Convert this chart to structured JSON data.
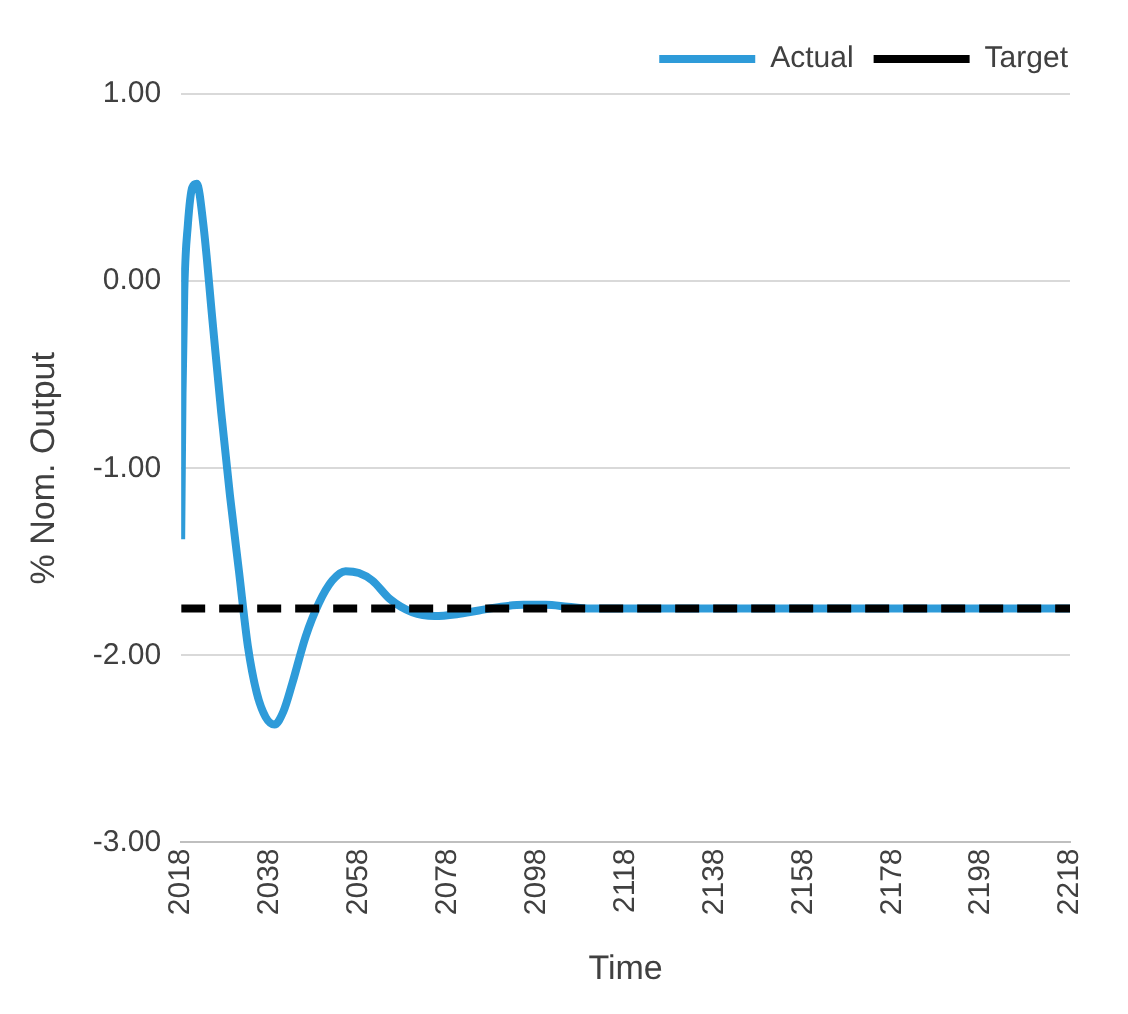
{
  "chart_data": {
    "type": "line",
    "xlabel": "Time",
    "ylabel": "% Nom. Output",
    "xlim": [
      2018,
      2218
    ],
    "xticks": [
      2018,
      2038,
      2058,
      2078,
      2098,
      2118,
      2138,
      2158,
      2178,
      2198,
      2218
    ],
    "ylim": [
      -3,
      1
    ],
    "yticks": [
      {
        "value": -3,
        "label": "-3.00"
      },
      {
        "value": -2,
        "label": "-2.00"
      },
      {
        "value": -1,
        "label": "-1.00"
      },
      {
        "value": 0,
        "label": "0.00"
      },
      {
        "value": 1,
        "label": "1.00"
      }
    ],
    "grid": "y",
    "legend": "top right",
    "marker": "none",
    "series": [
      {
        "name": "Actual",
        "color": "#2e9bd9",
        "line_style": "solid",
        "x": [
          2018,
          2018.3,
          2018.7,
          2019.5,
          2020.5,
          2021.5,
          2023,
          2025,
          2027,
          2029,
          2031,
          2033,
          2035,
          2037,
          2039,
          2041,
          2043,
          2046,
          2049,
          2052,
          2055,
          2058,
          2061,
          2065,
          2070,
          2075,
          2080,
          2085,
          2090,
          2095,
          2100,
          2105,
          2110,
          2120,
          2140,
          2160,
          2180,
          2200,
          2218
        ],
        "values": [
          -1.38,
          -0.6,
          -0.05,
          0.3,
          0.5,
          0.52,
          0.3,
          -0.2,
          -0.7,
          -1.15,
          -1.55,
          -1.95,
          -2.2,
          -2.33,
          -2.37,
          -2.3,
          -2.15,
          -1.9,
          -1.72,
          -1.6,
          -1.55,
          -1.56,
          -1.6,
          -1.7,
          -1.77,
          -1.79,
          -1.78,
          -1.76,
          -1.74,
          -1.73,
          -1.73,
          -1.74,
          -1.75,
          -1.75,
          -1.75,
          -1.75,
          -1.75,
          -1.75,
          -1.75
        ]
      },
      {
        "name": "Target",
        "color": "#000000",
        "line_style": "dashed",
        "x": [
          2018,
          2218
        ],
        "values": [
          -1.75,
          -1.75
        ]
      }
    ]
  }
}
